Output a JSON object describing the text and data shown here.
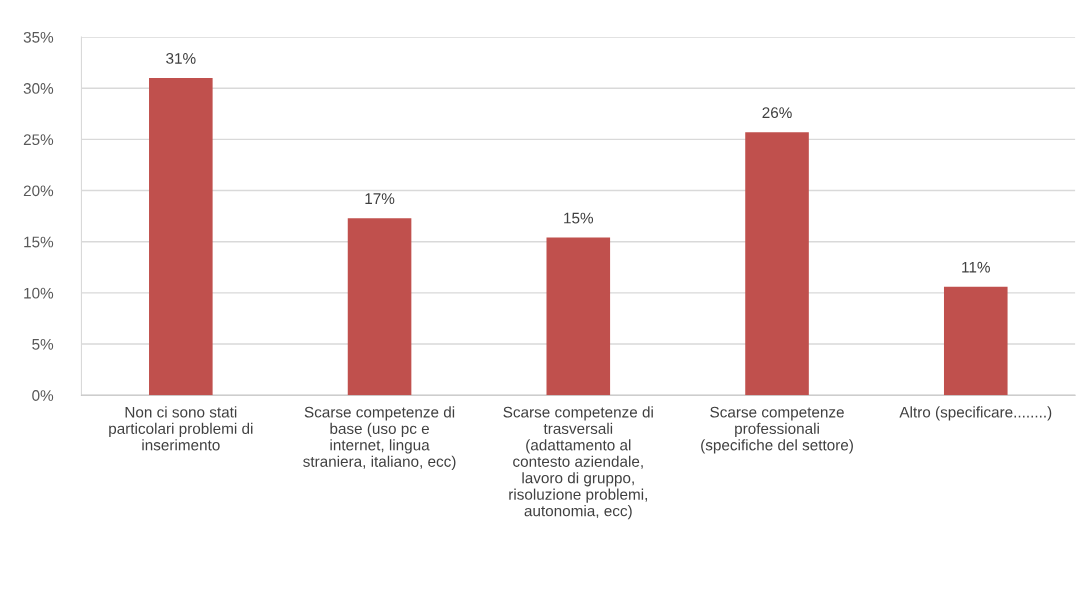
{
  "chart_data": {
    "type": "bar",
    "categories": [
      "Non ci sono stati\nparticolari problemi di\ninserimento",
      "Scarse competenze di\nbase (uso pc e\ninternet, lingua\nstraniera, italiano, ecc)",
      "Scarse competenze di\ntrasversali\n(adattamento al\ncontesto aziendale,\nlavoro di gruppo,\nrisoluzione problemi,\nautonomia, ecc)",
      "Scarse competenze\nprofessionali\n(specifiche del settore)",
      "Altro (specificare........)"
    ],
    "values": [
      31.0,
      17.3,
      15.4,
      25.7,
      10.6
    ],
    "value_labels": [
      "31%",
      "17%",
      "15%",
      "26%",
      "11%"
    ],
    "color": "#c0504d",
    "ylim": [
      0,
      35
    ],
    "yticks": [
      {
        "value": 0,
        "label": "0%"
      },
      {
        "value": 5,
        "label": "5%"
      },
      {
        "value": 10,
        "label": "10%"
      },
      {
        "value": 15,
        "label": "15%"
      },
      {
        "value": 20,
        "label": "20%"
      },
      {
        "value": 25,
        "label": "25%"
      },
      {
        "value": 30,
        "label": "30%"
      },
      {
        "value": 35,
        "label": "35%"
      }
    ],
    "grid": "y"
  }
}
